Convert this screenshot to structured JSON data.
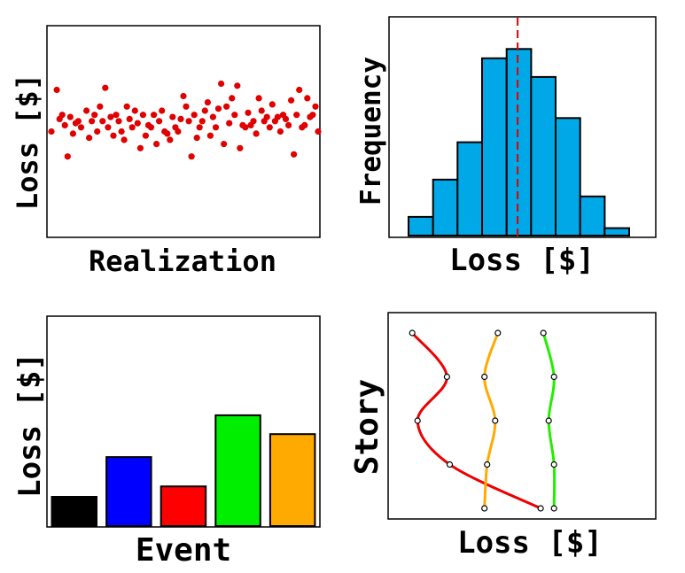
{
  "chart_data": [
    {
      "type": "scatter",
      "xlabel": "Realization",
      "ylabel": "Loss [$]",
      "xlim": [
        0,
        100
      ],
      "ylim": [
        0,
        100
      ],
      "ticks": false,
      "marker_color": "#e00000",
      "x": [
        1,
        3,
        4,
        5,
        6,
        7,
        8,
        9,
        10,
        11,
        12,
        14,
        15,
        16,
        17,
        18,
        19,
        20,
        21,
        22,
        23,
        24,
        25,
        26,
        27,
        28,
        29,
        30,
        31,
        32,
        33,
        34,
        35,
        36,
        37,
        38,
        39,
        40,
        41,
        42,
        43,
        44,
        45,
        46,
        47,
        48,
        49,
        50,
        51,
        52,
        53,
        54,
        55,
        56,
        57,
        58,
        59,
        60,
        61,
        62,
        63,
        64,
        65,
        66,
        67,
        68,
        69,
        70,
        71,
        72,
        73,
        74,
        75,
        76,
        77,
        78,
        79,
        80,
        81,
        82,
        83,
        84,
        85,
        86,
        87,
        88,
        89,
        90,
        91,
        92,
        93,
        94,
        95,
        96,
        97,
        98,
        99,
        100
      ],
      "y": [
        50,
        70,
        56,
        58,
        53,
        38,
        57,
        49,
        54,
        55,
        52,
        60,
        47,
        55,
        58,
        50,
        62,
        55,
        71,
        52,
        57,
        48,
        58,
        55,
        50,
        46,
        62,
        56,
        52,
        60,
        54,
        42,
        58,
        48,
        53,
        52,
        58,
        44,
        55,
        60,
        50,
        49,
        46,
        57,
        52,
        50,
        56,
        67,
        62,
        55,
        38,
        58,
        47,
        52,
        55,
        60,
        64,
        48,
        57,
        52,
        61,
        73,
        44,
        62,
        54,
        66,
        58,
        72,
        42,
        53,
        52,
        59,
        53,
        55,
        49,
        66,
        60,
        55,
        57,
        52,
        63,
        55,
        57,
        50,
        58,
        56,
        53,
        65,
        39,
        58,
        70,
        52,
        53,
        66,
        57,
        58,
        62,
        50
      ]
    },
    {
      "type": "bar",
      "subtype": "histogram",
      "xlabel": "Loss [$]",
      "ylabel": "Frequency",
      "bin_edges": [
        0,
        1,
        2,
        3,
        4,
        5,
        6,
        7,
        8,
        9
      ],
      "values": [
        10,
        30,
        50,
        95,
        100,
        85,
        63,
        21,
        4
      ],
      "ylim": [
        0,
        112
      ],
      "ticks": false,
      "bar_color": "#00a8e8",
      "mean_line": {
        "x": 4.45,
        "color": "#e00000",
        "style": "dashed"
      }
    },
    {
      "type": "bar",
      "xlabel": "Event",
      "ylabel": "Loss [$]",
      "values": [
        14,
        33,
        19,
        53,
        44
      ],
      "colors": [
        "#000000",
        "#0000ff",
        "#ff0000",
        "#00ee00",
        "#ffaa00"
      ],
      "ylim": [
        0,
        100
      ],
      "ticks": false
    },
    {
      "type": "line",
      "xlabel": "Loss [$]",
      "ylabel": "Story",
      "x_range": [
        0,
        100
      ],
      "stories": [
        1,
        2,
        3,
        4,
        5
      ],
      "ticks": false,
      "series": [
        {
          "color": "#ee0000",
          "x": [
            57,
            23,
            11,
            22,
            9
          ]
        },
        {
          "color": "#ffaa00",
          "x": [
            36,
            37,
            40,
            36,
            41
          ]
        },
        {
          "color": "#22ee00",
          "x": [
            62,
            62,
            60,
            62,
            58
          ]
        }
      ]
    }
  ]
}
